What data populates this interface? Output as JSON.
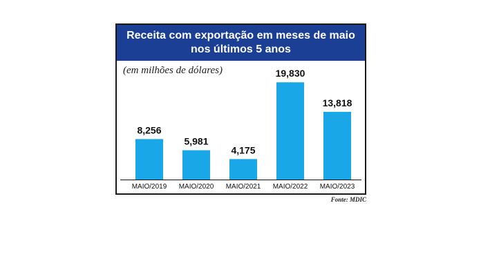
{
  "chart_data": {
    "type": "bar",
    "title_lines": [
      "Receita com exportação em meses de maio",
      "nos últimos 5 anos"
    ],
    "unit": "(em milhões de dólares)",
    "categories": [
      "MAIO/2019",
      "MAIO/2020",
      "MAIO/2021",
      "MAIO/2022",
      "MAIO/2023"
    ],
    "values": [
      8256,
      5981,
      4175,
      19830,
      13818
    ],
    "value_labels": [
      "8,256",
      "5,981",
      "4,175",
      "19,830",
      "13,818"
    ],
    "ylim": [
      0,
      20000
    ],
    "grid": false,
    "legend": "none",
    "source": "Fonte: MDIC"
  },
  "colors": {
    "bar": "#1aa7e8",
    "title_bg": "#1b3f94",
    "title_text": "#ffffff",
    "text": "#111111"
  }
}
